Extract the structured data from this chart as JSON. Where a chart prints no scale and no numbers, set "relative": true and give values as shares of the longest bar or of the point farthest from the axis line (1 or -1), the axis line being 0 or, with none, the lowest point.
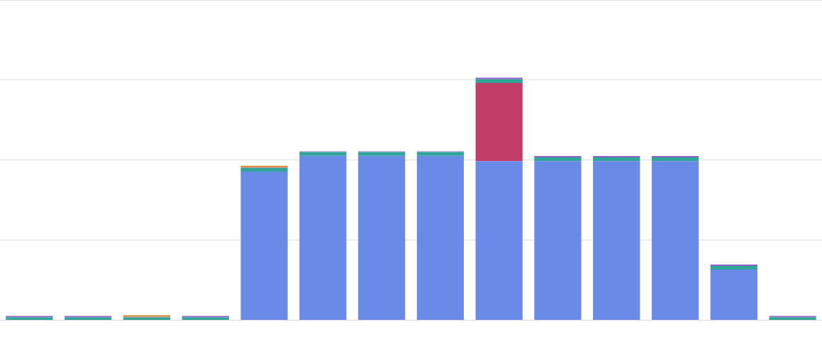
{
  "chart_data": {
    "type": "bar",
    "relative": true,
    "stacked": true,
    "grid": "y",
    "legend": false,
    "categories": [
      null,
      null,
      null,
      null,
      null,
      null,
      null,
      null,
      null,
      null,
      null,
      null,
      null,
      null
    ],
    "series": [
      {
        "color": "#6a8ae8",
        "values": [
          0,
          0,
          0,
          0,
          0.613,
          0.678,
          0.678,
          0.678,
          0.656,
          0.656,
          0.656,
          0.656,
          0.209,
          0
        ]
      },
      {
        "color": "#c23e68",
        "values": [
          0,
          0,
          0,
          0,
          0,
          0,
          0,
          0,
          0.322,
          0,
          0,
          0,
          0,
          0
        ]
      },
      {
        "color": "#2ea597",
        "values": [
          0.012,
          0.012,
          0.012,
          0.012,
          0.015,
          0.015,
          0.015,
          0.015,
          0.015,
          0.015,
          0.015,
          0.015,
          0.015,
          0.012
        ]
      },
      {
        "color": "#e0707a",
        "values": [
          0,
          0,
          0.003,
          0,
          0.003,
          0,
          0,
          0,
          0,
          0,
          0,
          0,
          0,
          0
        ]
      },
      {
        "color": "#8a62c8",
        "values": [
          0.006,
          0.006,
          0,
          0.006,
          0,
          0.003,
          0.003,
          0.003,
          0.007,
          0.006,
          0.006,
          0.006,
          0.006,
          0.006
        ]
      },
      {
        "color": "#d08a2e",
        "values": [
          0,
          0,
          0.006,
          0,
          0.006,
          0,
          0,
          0,
          0,
          0,
          0,
          0,
          0,
          0
        ]
      }
    ]
  }
}
